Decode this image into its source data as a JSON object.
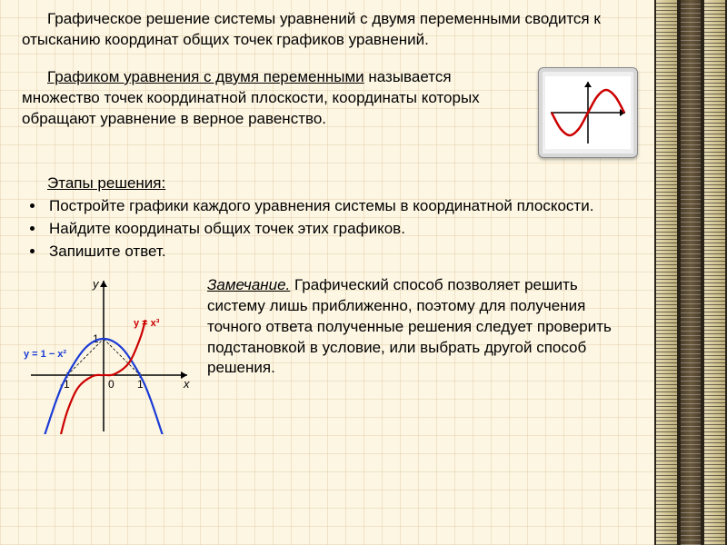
{
  "para1": "Графическое решение системы уравнений с двумя переменными сводится к отысканию координат общих точек графиков уравнений.",
  "para2": {
    "underlined": "Графиком уравнения с двумя переменными",
    "rest": " называется множество точек координатной плоскости, координаты которых обращают уравнение в верное равенство."
  },
  "stages_title": "Этапы решения:",
  "steps": [
    "Постройте графики каждого уравнения системы в координатной плоскости.",
    "Найдите координаты общих точек этих графиков.",
    "Запишите ответ."
  ],
  "note": {
    "label": "Замечание.",
    "text": " Графический способ позволяет решить систему лишь приближенно, поэтому для получения точного ответа полученные решения следует проверить подстановкой в условие, или выбрать другой способ решения."
  },
  "thumb_chart": {
    "type": "line",
    "background": "#ffffff",
    "axis_color": "#000000",
    "curve_color": "#cc0000",
    "curve_width": 2.5,
    "xlim": [
      -3.14,
      3.14
    ],
    "ylim": [
      -1.2,
      1.2
    ],
    "x": [
      -3.14,
      -2.36,
      -1.57,
      -0.79,
      0,
      0.79,
      1.57,
      2.36,
      3.14
    ],
    "y": [
      0,
      -0.71,
      -1,
      -0.71,
      0,
      0.71,
      1,
      0.71,
      0
    ]
  },
  "main_chart": {
    "type": "line",
    "background": "transparent",
    "axis_color": "#000000",
    "xlabel": "x",
    "ylabel": "y",
    "label_fontsize": 13,
    "xlim": [
      -2,
      2
    ],
    "ylim": [
      -1.8,
      1.6
    ],
    "xticks": [
      -1,
      0,
      1
    ],
    "yticks": [
      1
    ],
    "series": [
      {
        "name": "parabola",
        "equation_label": "y = 1 − x²",
        "label_color": "#1a3bd6",
        "color": "#1a3bd6",
        "width": 2.2,
        "x": [
          -1.7,
          -1.3,
          -1,
          -0.5,
          0,
          0.5,
          1,
          1.3,
          1.7
        ],
        "y": [
          -1.89,
          -0.69,
          0,
          0.75,
          1,
          0.75,
          0,
          -0.69,
          -1.89
        ]
      },
      {
        "name": "cubic",
        "equation_label": "y = x³",
        "label_color": "#cc0000",
        "color": "#cc0000",
        "width": 2.2,
        "x": [
          -1.2,
          -1,
          -0.7,
          -0.3,
          0,
          0.3,
          0.7,
          1,
          1.15
        ],
        "y": [
          -1.73,
          -1,
          -0.34,
          -0.027,
          0,
          0.027,
          0.34,
          1,
          1.52
        ]
      }
    ]
  }
}
